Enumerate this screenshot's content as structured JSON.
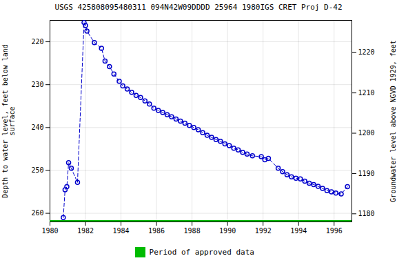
{
  "chart_data": {
    "type": "line",
    "title": "USGS 425808095480311 094N42W09DDDD 25964 1980IGS CRET Proj D-42",
    "ylabel": "Depth to water level, feet below land\nsurface",
    "y2label": "Groundwater level above NGVD 1929, feet",
    "x": [
      1980.75,
      1980.85,
      1980.95,
      1981.05,
      1981.2,
      1981.55,
      1981.92,
      1982.0,
      1982.08,
      1982.5,
      1982.9,
      1983.1,
      1983.35,
      1983.6,
      1983.9,
      1984.1,
      1984.35,
      1984.6,
      1984.85,
      1985.1,
      1985.35,
      1985.6,
      1985.85,
      1986.1,
      1986.35,
      1986.6,
      1986.85,
      1987.1,
      1987.35,
      1987.6,
      1987.85,
      1988.1,
      1988.35,
      1988.6,
      1988.85,
      1989.1,
      1989.35,
      1989.6,
      1989.85,
      1990.1,
      1990.35,
      1990.6,
      1990.85,
      1991.1,
      1991.4,
      1991.9,
      1992.1,
      1992.3,
      1992.85,
      1993.1,
      1993.35,
      1993.6,
      1993.85,
      1994.1,
      1994.35,
      1994.6,
      1994.85,
      1995.1,
      1995.35,
      1995.6,
      1995.85,
      1996.1,
      1996.4,
      1996.75
    ],
    "values": [
      261.0,
      254.5,
      253.8,
      248.2,
      249.5,
      252.8,
      215.5,
      216.2,
      217.5,
      220.2,
      221.5,
      224.5,
      225.8,
      227.5,
      229.2,
      230.3,
      231.0,
      231.8,
      232.5,
      233.0,
      233.8,
      234.5,
      235.5,
      236.0,
      236.5,
      237.0,
      237.5,
      238.0,
      238.5,
      239.0,
      239.5,
      240.0,
      240.5,
      241.2,
      241.8,
      242.3,
      242.8,
      243.2,
      243.8,
      244.2,
      244.8,
      245.2,
      245.8,
      246.2,
      246.6,
      246.8,
      247.5,
      247.2,
      249.5,
      250.3,
      251.0,
      251.5,
      251.8,
      252.0,
      252.5,
      253.0,
      253.3,
      253.7,
      254.2,
      254.7,
      255.0,
      255.3,
      255.5,
      253.8
    ],
    "color": "#0000cc",
    "marker": "circle",
    "line_style": "dashed",
    "approved_period": {
      "name": "Period of approved data",
      "color": "#00bb00"
    },
    "legend": "bottom",
    "xlim": [
      1980,
      1997
    ],
    "xticks": [
      1980,
      1982,
      1984,
      1986,
      1988,
      1990,
      1992,
      1994,
      1996
    ],
    "ylim": [
      262,
      215
    ],
    "yticks": [
      220,
      230,
      240,
      250,
      260
    ],
    "y2lim": [
      1178,
      1228
    ],
    "y2ticks": [
      1180,
      1190,
      1200,
      1210,
      1220
    ],
    "grid": true
  }
}
